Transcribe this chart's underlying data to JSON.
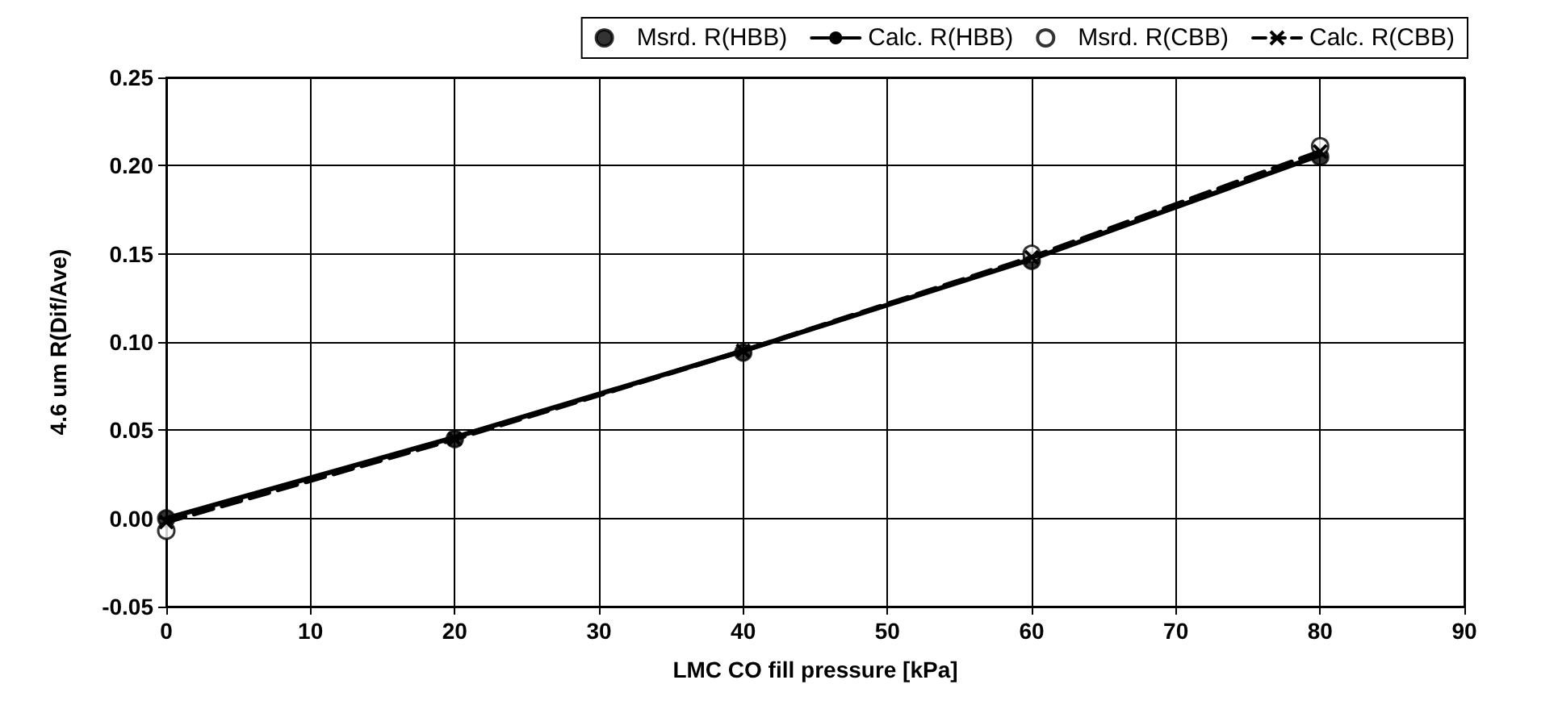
{
  "chart_data": {
    "type": "scatter",
    "xlabel": "LMC CO fill pressure [kPa]",
    "ylabel": "4.6 um R(Dif/Ave)",
    "x": [
      0,
      20,
      40,
      60,
      80
    ],
    "series": [
      {
        "name": "Msrd. R(HBB)",
        "color": "#000000",
        "marker": "circle",
        "values": [
          0,
          0.045,
          0.094,
          0.146,
          0.205
        ]
      },
      {
        "name": "Calc. R(HBB)",
        "type": "line",
        "color": "#000000",
        "line_style": "solid",
        "values": [
          0,
          0.046,
          0.095,
          0.147,
          0.206
        ]
      },
      {
        "name": "Msrd. R(CBB)",
        "color": "#ffffff",
        "marker": "circle",
        "values": [
          -0.007,
          null,
          null,
          0.15,
          0.211
        ]
      },
      {
        "name": "Calc. R(CBB)",
        "type": "line",
        "color": "#000000",
        "marker": "cross",
        "line_style": "dashed",
        "values": [
          -0.002,
          0.045,
          0.095,
          0.148,
          0.208
        ]
      }
    ],
    "xlim": [
      0,
      90
    ],
    "xticks": [
      0,
      10,
      20,
      30,
      40,
      50,
      60,
      70,
      80,
      90
    ],
    "ylim": [
      -0.05,
      0.25
    ],
    "yticks": [
      {
        "value": -0.05,
        "label": "-0.05"
      },
      {
        "value": 0,
        "label": "0.00"
      },
      {
        "value": 0.05,
        "label": "0.05"
      },
      {
        "value": 0.1,
        "label": "0.10"
      },
      {
        "value": 0.15,
        "label": "0.15"
      },
      {
        "value": 0.2,
        "label": "0.20"
      },
      {
        "value": 0.25,
        "label": "0.25"
      }
    ],
    "grid": true,
    "legend": "top"
  }
}
